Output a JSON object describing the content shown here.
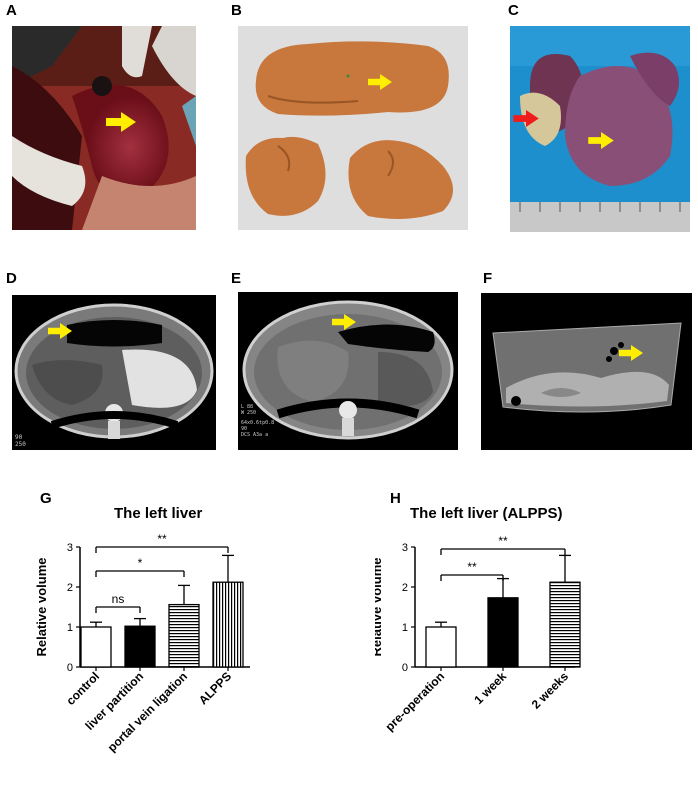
{
  "panels": {
    "a": "A",
    "b": "B",
    "c": "C",
    "d": "D",
    "e": "E",
    "f": "F",
    "g": "G",
    "h": "H"
  },
  "ct_text": {
    "d_corner": "90\n250",
    "e_corner": "L 88\nW 250",
    "e_meta": "64x0.6tp0.8\n90\nDCS A3a a"
  },
  "colors": {
    "arrow_yellow": "#ffee00",
    "arrow_red": "#ee1c1c",
    "liver_model": "#c8773d",
    "bar_outline": "#000000"
  },
  "chart_data": [
    {
      "type": "bar",
      "title": "The left liver",
      "ylabel": "Relative volume",
      "categories": [
        "control",
        "liver partition",
        "portal vein ligation",
        "ALPPS"
      ],
      "values": [
        1.0,
        1.02,
        1.56,
        2.12
      ],
      "errors": [
        0.12,
        0.19,
        0.48,
        0.67
      ],
      "fills": [
        "white",
        "black",
        "horizontal-stripes",
        "vertical-stripes"
      ],
      "ylim": [
        0,
        3
      ],
      "yticks": [
        "0",
        "1",
        "2",
        "3"
      ],
      "significance": [
        {
          "from": 0,
          "to": 1,
          "label": "ns"
        },
        {
          "from": 0,
          "to": 2,
          "label": "*"
        },
        {
          "from": 0,
          "to": 3,
          "label": "**"
        }
      ]
    },
    {
      "type": "bar",
      "title": "The left liver (ALPPS)",
      "ylabel": "Relative volume",
      "categories": [
        "pre-operation",
        "1 week",
        "2 weeks"
      ],
      "values": [
        1.0,
        1.73,
        2.12
      ],
      "errors": [
        0.12,
        0.48,
        0.67
      ],
      "fills": [
        "white",
        "black",
        "horizontal-stripes"
      ],
      "ylim": [
        0,
        3
      ],
      "yticks": [
        "0",
        "1",
        "2",
        "3"
      ],
      "significance": [
        {
          "from": 0,
          "to": 1,
          "label": "**"
        },
        {
          "from": 0,
          "to": 2,
          "label": "**"
        }
      ]
    }
  ]
}
